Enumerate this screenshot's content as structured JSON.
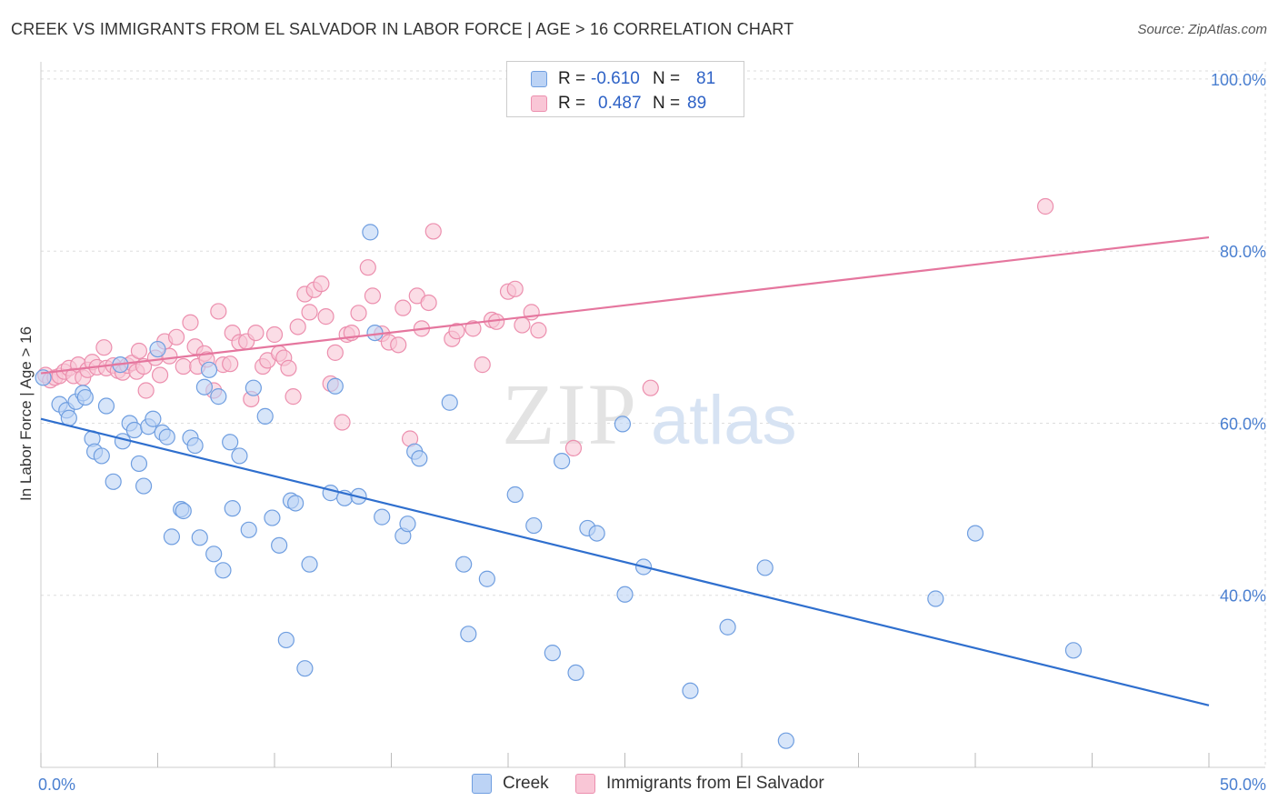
{
  "header": {
    "title": "CREEK VS IMMIGRANTS FROM EL SALVADOR IN LABOR FORCE | AGE > 16 CORRELATION CHART",
    "source": "Source: ZipAtlas.com"
  },
  "watermark": {
    "zip": "ZIP",
    "atlas": "atlas"
  },
  "legend": {
    "rows": [
      {
        "r_label": "R =",
        "r_value": "-0.610",
        "n_label": "N =",
        "n_value": "81"
      },
      {
        "r_label": "R =",
        "r_value": "0.487",
        "n_label": "N =",
        "n_value": "89"
      }
    ]
  },
  "bottom_legend": {
    "creek": "Creek",
    "elsalvador": "Immigrants from El Salvador"
  },
  "colors": {
    "creek_fill": "#bcd3f5",
    "creek_stroke": "#6f9ee0",
    "creek_line": "#2f6fce",
    "sal_fill": "#f9c6d6",
    "sal_stroke": "#ec8fae",
    "sal_line": "#e5769e",
    "tick_text": "#4a7fd0",
    "grid": "#dddddd"
  },
  "chart_data": {
    "type": "scatter",
    "title": "CREEK VS IMMIGRANTS FROM EL SALVADOR IN LABOR FORCE | AGE > 16 CORRELATION CHART",
    "xlabel": "",
    "ylabel": "In Labor Force | Age > 16",
    "xlim": [
      0,
      50
    ],
    "ylim": [
      20,
      102
    ],
    "x_tick_labels": [
      "0.0%",
      "50.0%"
    ],
    "y_ticks": [
      40,
      60,
      80,
      100
    ],
    "y_tick_labels": [
      "40.0%",
      "60.0%",
      "80.0%",
      "100.0%"
    ],
    "grid": true,
    "legend_position": "top-center",
    "series": [
      {
        "name": "Creek",
        "trend": {
          "x": [
            0,
            50
          ],
          "y": [
            60.5,
            27.2
          ]
        },
        "points": [
          [
            0.1,
            65.3
          ],
          [
            0.8,
            62.2
          ],
          [
            1.1,
            61.5
          ],
          [
            1.2,
            60.6
          ],
          [
            1.5,
            62.5
          ],
          [
            1.8,
            63.5
          ],
          [
            1.9,
            63.0
          ],
          [
            2.2,
            58.2
          ],
          [
            2.3,
            56.7
          ],
          [
            2.6,
            56.2
          ],
          [
            2.8,
            62.0
          ],
          [
            3.1,
            53.2
          ],
          [
            3.4,
            66.8
          ],
          [
            3.5,
            57.9
          ],
          [
            3.8,
            60.0
          ],
          [
            4.0,
            59.2
          ],
          [
            4.2,
            55.3
          ],
          [
            4.4,
            52.7
          ],
          [
            4.6,
            59.6
          ],
          [
            4.8,
            60.5
          ],
          [
            5.0,
            68.6
          ],
          [
            5.2,
            58.9
          ],
          [
            5.4,
            58.4
          ],
          [
            5.6,
            46.8
          ],
          [
            6.0,
            50.0
          ],
          [
            6.1,
            49.8
          ],
          [
            6.4,
            58.3
          ],
          [
            6.6,
            57.4
          ],
          [
            6.8,
            46.7
          ],
          [
            7.0,
            64.2
          ],
          [
            7.2,
            66.2
          ],
          [
            7.4,
            44.8
          ],
          [
            7.6,
            63.1
          ],
          [
            7.8,
            42.9
          ],
          [
            8.1,
            57.8
          ],
          [
            8.2,
            50.1
          ],
          [
            8.5,
            56.2
          ],
          [
            8.9,
            47.6
          ],
          [
            9.1,
            64.1
          ],
          [
            9.6,
            60.8
          ],
          [
            9.9,
            49.0
          ],
          [
            10.2,
            45.8
          ],
          [
            10.5,
            34.8
          ],
          [
            10.7,
            51.0
          ],
          [
            10.9,
            50.7
          ],
          [
            11.3,
            31.5
          ],
          [
            11.5,
            43.6
          ],
          [
            12.4,
            51.9
          ],
          [
            12.6,
            64.3
          ],
          [
            13.0,
            51.3
          ],
          [
            13.6,
            51.5
          ],
          [
            14.1,
            82.2
          ],
          [
            14.3,
            70.5
          ],
          [
            14.6,
            49.1
          ],
          [
            15.5,
            46.9
          ],
          [
            15.7,
            48.3
          ],
          [
            16.0,
            56.7
          ],
          [
            16.2,
            55.9
          ],
          [
            17.5,
            62.4
          ],
          [
            18.1,
            43.6
          ],
          [
            18.3,
            35.5
          ],
          [
            19.1,
            41.9
          ],
          [
            20.3,
            51.7
          ],
          [
            21.1,
            48.1
          ],
          [
            21.9,
            33.3
          ],
          [
            22.3,
            55.6
          ],
          [
            22.9,
            31.0
          ],
          [
            23.4,
            47.8
          ],
          [
            23.8,
            47.2
          ],
          [
            24.9,
            59.9
          ],
          [
            25.0,
            40.1
          ],
          [
            25.8,
            43.3
          ],
          [
            27.8,
            28.9
          ],
          [
            29.4,
            36.3
          ],
          [
            31.0,
            43.2
          ],
          [
            31.9,
            23.1
          ],
          [
            38.3,
            39.6
          ],
          [
            40.0,
            47.2
          ],
          [
            44.2,
            33.6
          ]
        ]
      },
      {
        "name": "Immigrants from El Salvador",
        "trend": {
          "x": [
            0,
            50
          ],
          "y": [
            65.8,
            81.6
          ]
        },
        "points": [
          [
            0.2,
            65.6
          ],
          [
            0.4,
            65.0
          ],
          [
            0.6,
            65.3
          ],
          [
            0.8,
            65.5
          ],
          [
            1.0,
            66.0
          ],
          [
            1.2,
            66.4
          ],
          [
            1.4,
            65.5
          ],
          [
            1.6,
            66.8
          ],
          [
            1.8,
            65.3
          ],
          [
            2.0,
            66.2
          ],
          [
            2.2,
            67.1
          ],
          [
            2.4,
            66.5
          ],
          [
            2.7,
            68.8
          ],
          [
            2.8,
            66.4
          ],
          [
            3.1,
            66.7
          ],
          [
            3.3,
            66.1
          ],
          [
            3.5,
            65.9
          ],
          [
            3.7,
            66.7
          ],
          [
            3.9,
            67.0
          ],
          [
            4.1,
            66.0
          ],
          [
            4.2,
            68.4
          ],
          [
            4.4,
            66.6
          ],
          [
            4.5,
            63.8
          ],
          [
            4.9,
            67.6
          ],
          [
            5.1,
            65.6
          ],
          [
            5.3,
            69.5
          ],
          [
            5.5,
            67.8
          ],
          [
            5.8,
            70.0
          ],
          [
            6.1,
            66.6
          ],
          [
            6.4,
            71.7
          ],
          [
            6.6,
            68.9
          ],
          [
            6.7,
            66.6
          ],
          [
            7.0,
            68.1
          ],
          [
            7.1,
            67.4
          ],
          [
            7.4,
            63.8
          ],
          [
            7.6,
            73.0
          ],
          [
            7.8,
            66.8
          ],
          [
            8.1,
            66.9
          ],
          [
            8.2,
            70.5
          ],
          [
            8.5,
            69.4
          ],
          [
            8.8,
            69.5
          ],
          [
            9.0,
            62.8
          ],
          [
            9.2,
            70.5
          ],
          [
            9.5,
            66.6
          ],
          [
            9.7,
            67.3
          ],
          [
            10.0,
            70.3
          ],
          [
            10.2,
            68.1
          ],
          [
            10.4,
            67.6
          ],
          [
            10.6,
            66.4
          ],
          [
            10.8,
            63.1
          ],
          [
            11.0,
            71.2
          ],
          [
            11.3,
            75.0
          ],
          [
            11.5,
            72.9
          ],
          [
            11.7,
            75.5
          ],
          [
            12.0,
            76.2
          ],
          [
            12.2,
            72.4
          ],
          [
            12.4,
            64.6
          ],
          [
            12.6,
            68.2
          ],
          [
            12.9,
            60.1
          ],
          [
            13.1,
            70.3
          ],
          [
            13.3,
            70.5
          ],
          [
            13.6,
            72.8
          ],
          [
            14.0,
            78.1
          ],
          [
            14.2,
            74.8
          ],
          [
            14.6,
            70.4
          ],
          [
            14.9,
            69.4
          ],
          [
            15.3,
            69.1
          ],
          [
            15.5,
            73.4
          ],
          [
            15.8,
            58.2
          ],
          [
            16.1,
            74.8
          ],
          [
            16.3,
            71.0
          ],
          [
            16.6,
            74.0
          ],
          [
            16.8,
            82.3
          ],
          [
            17.6,
            69.8
          ],
          [
            17.8,
            70.7
          ],
          [
            18.5,
            71.0
          ],
          [
            18.9,
            66.8
          ],
          [
            19.3,
            72.0
          ],
          [
            19.5,
            71.8
          ],
          [
            20.0,
            75.3
          ],
          [
            20.3,
            75.6
          ],
          [
            20.6,
            71.4
          ],
          [
            21.0,
            72.9
          ],
          [
            21.3,
            70.8
          ],
          [
            22.8,
            57.1
          ],
          [
            26.1,
            64.1
          ],
          [
            43.0,
            85.2
          ]
        ]
      }
    ]
  }
}
